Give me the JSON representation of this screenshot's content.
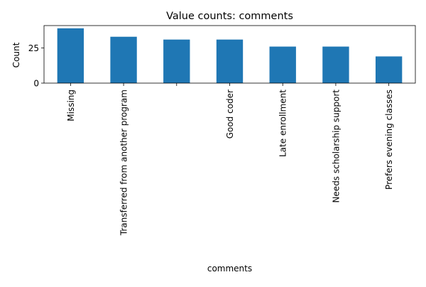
{
  "chart_data": {
    "type": "bar",
    "title": "Value counts: comments",
    "xlabel": "comments",
    "ylabel": "Count",
    "categories": [
      "Missing",
      "Transferred from another program",
      "",
      "Good coder",
      "Late enrollment",
      "Needs scholarship support",
      "Prefers evening classes"
    ],
    "values": [
      39,
      33,
      31,
      31,
      26,
      26,
      19
    ],
    "ylim": [
      0,
      40.95
    ],
    "yticks": [
      0,
      25
    ],
    "grid": false,
    "legend": "none",
    "bar_color": "#1f77b4"
  }
}
